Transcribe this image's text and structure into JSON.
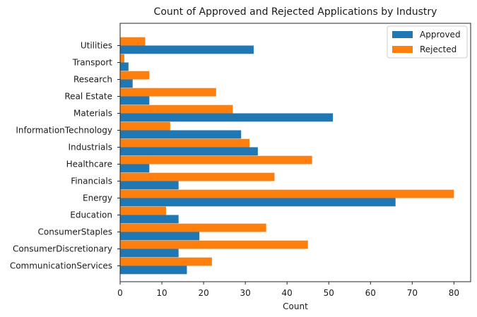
{
  "chart_data": {
    "type": "bar",
    "orientation": "horizontal",
    "title": "Count of Approved and Rejected Applications by Industry",
    "xlabel": "Count",
    "ylabel": "",
    "xlim": [
      0,
      84
    ],
    "xticks": [
      0,
      10,
      20,
      30,
      40,
      50,
      60,
      70,
      80
    ],
    "grid": false,
    "legend_position": "top-right",
    "categories": [
      "CommunicationServices",
      "ConsumerDiscretionary",
      "ConsumerStaples",
      "Education",
      "Energy",
      "Financials",
      "Healthcare",
      "Industrials",
      "InformationTechnology",
      "Materials",
      "Real Estate",
      "Research",
      "Transport",
      "Utilities"
    ],
    "series": [
      {
        "name": "Approved",
        "color": "#1f77b4",
        "values": [
          16,
          14,
          19,
          14,
          66,
          14,
          7,
          33,
          29,
          51,
          7,
          3,
          2,
          32
        ]
      },
      {
        "name": "Rejected",
        "color": "#ff7f0e",
        "values": [
          22,
          45,
          35,
          11,
          80,
          37,
          46,
          31,
          12,
          27,
          23,
          7,
          1,
          6
        ]
      }
    ]
  }
}
